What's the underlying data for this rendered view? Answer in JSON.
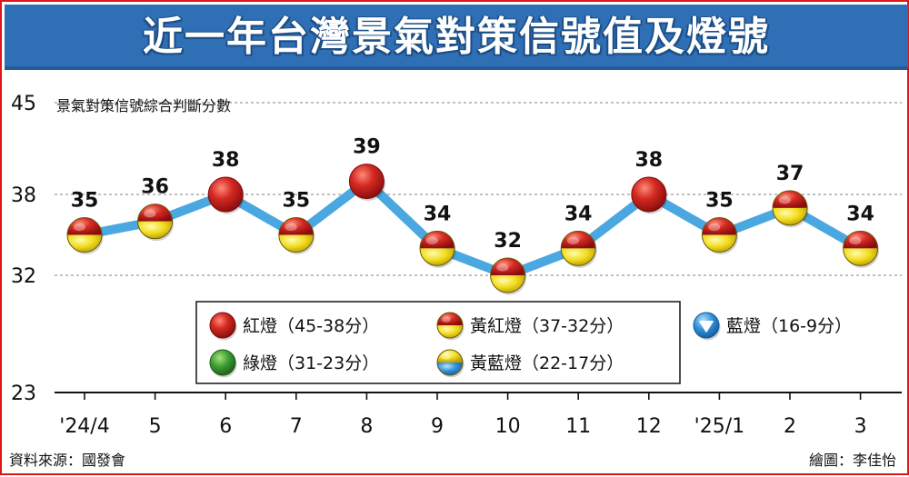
{
  "title": "近一年台灣景氣對策信號值及燈號",
  "source": "資料來源：國發會",
  "credit": "繪圖：李佳怡",
  "colors": {
    "title_bg": "#2f6fb6",
    "line": "#4aa7e0",
    "red": "#c21f1f",
    "yellow": "#f2dd1e",
    "blue": "#2f8fd8",
    "green": "#3f9e34",
    "frame": "#e01616"
  },
  "chart_data": {
    "type": "line",
    "ylabel": "景氣對策信號綜合判斷分數",
    "yticks": [
      23,
      32,
      38,
      45
    ],
    "ylim": [
      23,
      45
    ],
    "grid": true,
    "categories": [
      "'24/4",
      "5",
      "6",
      "7",
      "8",
      "9",
      "10",
      "11",
      "12",
      "'25/1",
      "2",
      "3"
    ],
    "values": [
      35,
      36,
      38,
      35,
      39,
      34,
      32,
      34,
      38,
      35,
      37,
      34
    ],
    "signals": [
      "yellow-red",
      "yellow-red",
      "red",
      "yellow-red",
      "red",
      "yellow-red",
      "yellow-red",
      "yellow-red",
      "red",
      "yellow-red",
      "yellow-red",
      "yellow-red"
    ],
    "legend": [
      {
        "key": "red",
        "label": "紅燈（45-38分）"
      },
      {
        "key": "yellow-red",
        "label": "黃紅燈（37-32分）"
      },
      {
        "key": "blue",
        "label": "藍燈（16-9分）"
      },
      {
        "key": "green",
        "label": "綠燈（31-23分）"
      },
      {
        "key": "yellow-blue",
        "label": "黃藍燈（22-17分）"
      }
    ]
  }
}
